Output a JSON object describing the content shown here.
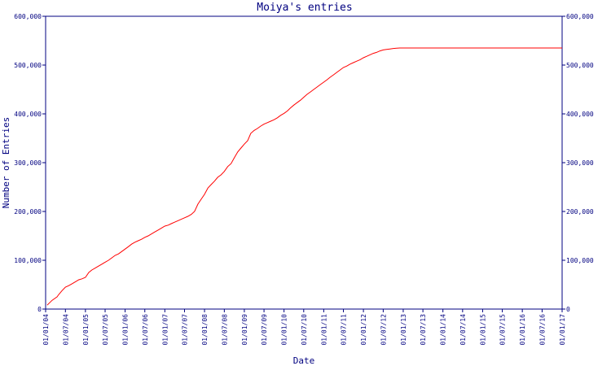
{
  "chart_data": {
    "type": "line",
    "title": "Moiya's entries",
    "xlabel": "Date",
    "ylabel": "Number of Entries",
    "ylim": [
      0,
      600000
    ],
    "y_ticks": [
      "0",
      "100,000",
      "200,000",
      "300,000",
      "400,000",
      "500,000",
      "600,000"
    ],
    "x_ticks": [
      "01/01/04",
      "01/07/04",
      "01/01/05",
      "01/07/05",
      "01/01/06",
      "01/07/06",
      "01/01/07",
      "01/07/07",
      "01/01/08",
      "01/07/08",
      "01/01/09",
      "01/07/09",
      "01/01/10",
      "01/07/10",
      "01/01/11",
      "01/07/11",
      "01/01/12",
      "01/07/12",
      "01/01/13",
      "01/07/13",
      "01/01/14",
      "01/07/14",
      "01/01/15",
      "01/07/15",
      "01/01/16",
      "01/07/16",
      "01/01/17"
    ],
    "grid": false,
    "right_axis_duplicate": true,
    "colors": {
      "axis": "#000080",
      "series": "#ff0000"
    },
    "series": [
      {
        "x": [
          "2004-01-15",
          "2004-03-01",
          "2004-04-15",
          "2004-05-01",
          "2004-06-01",
          "2004-07-01",
          "2004-08-01",
          "2004-09-01",
          "2004-10-01",
          "2004-11-01",
          "2004-12-01",
          "2005-01-01",
          "2005-02-01",
          "2005-03-01",
          "2005-04-01",
          "2005-05-01",
          "2005-06-01",
          "2005-07-01",
          "2005-08-01",
          "2005-09-01",
          "2005-10-01",
          "2005-11-01",
          "2005-12-01",
          "2006-01-01",
          "2006-02-01",
          "2006-03-01",
          "2006-04-01",
          "2006-05-01",
          "2006-06-01",
          "2006-07-01",
          "2006-08-01",
          "2006-09-01",
          "2006-10-01",
          "2006-11-01",
          "2006-12-01",
          "2007-01-01",
          "2007-02-01",
          "2007-03-01",
          "2007-04-01",
          "2007-05-01",
          "2007-06-01",
          "2007-07-01",
          "2007-08-01",
          "2007-09-01",
          "2007-10-01",
          "2007-11-01",
          "2007-12-01",
          "2008-01-01",
          "2008-02-01",
          "2008-03-01",
          "2008-04-01",
          "2008-05-01",
          "2008-06-01",
          "2008-07-01",
          "2008-08-01",
          "2008-09-01",
          "2008-10-01",
          "2008-11-01",
          "2008-12-01",
          "2009-01-01",
          "2009-02-01",
          "2009-03-01",
          "2009-04-01",
          "2009-05-01",
          "2009-06-01",
          "2009-07-01",
          "2009-08-01",
          "2009-09-01",
          "2009-10-01",
          "2009-11-01",
          "2009-12-01",
          "2010-01-01",
          "2010-02-01",
          "2010-03-01",
          "2010-04-01",
          "2010-05-01",
          "2010-06-01",
          "2010-07-01",
          "2010-08-01",
          "2010-09-01",
          "2010-10-01",
          "2010-11-01",
          "2010-12-01",
          "2011-01-01",
          "2011-02-01",
          "2011-03-01",
          "2011-04-01",
          "2011-05-01",
          "2011-06-01",
          "2011-07-01",
          "2011-08-01",
          "2011-09-01",
          "2011-10-01",
          "2011-11-01",
          "2011-12-01",
          "2012-01-01",
          "2012-02-01",
          "2012-03-01",
          "2012-04-01",
          "2012-05-01",
          "2012-06-01",
          "2012-07-01",
          "2012-08-01",
          "2012-09-01",
          "2012-10-01",
          "2012-11-01",
          "2012-12-01",
          "2013-01-01",
          "2013-02-01",
          "2013-03-01",
          "2013-04-01",
          "2013-05-01",
          "2013-06-01",
          "2013-07-01",
          "2013-08-01",
          "2013-09-01",
          "2013-10-01",
          "2013-11-01",
          "2014-01-01",
          "2014-07-01",
          "2015-01-01",
          "2015-07-01",
          "2016-01-01",
          "2016-07-01",
          "2017-01-01"
        ],
        "values": [
          8000,
          18000,
          25000,
          30000,
          38000,
          45000,
          48000,
          52000,
          56000,
          60000,
          62000,
          65000,
          75000,
          80000,
          84000,
          88000,
          92000,
          96000,
          100000,
          105000,
          110000,
          113000,
          118000,
          123000,
          128000,
          133000,
          137000,
          140000,
          143000,
          147000,
          150000,
          154000,
          158000,
          162000,
          166000,
          170000,
          172000,
          175000,
          178000,
          181000,
          184000,
          187000,
          190000,
          194000,
          200000,
          215000,
          225000,
          235000,
          248000,
          255000,
          262000,
          270000,
          275000,
          282000,
          292000,
          298000,
          310000,
          322000,
          330000,
          338000,
          345000,
          360000,
          366000,
          370000,
          375000,
          379000,
          382000,
          385000,
          388000,
          392000,
          397000,
          401000,
          406000,
          412000,
          418000,
          423000,
          428000,
          434000,
          440000,
          445000,
          450000,
          455000,
          460000,
          465000,
          470000,
          475000,
          480000,
          485000,
          490000,
          495000,
          498000,
          502000,
          505000,
          508000,
          511000,
          515000,
          518000,
          521000,
          524000,
          526000,
          529000,
          531000,
          532000,
          533000,
          534000,
          534500,
          535000,
          535000,
          535000,
          535000,
          535000,
          535000,
          535000,
          535000,
          535000,
          535000,
          535000,
          535000,
          535000,
          535000,
          535000,
          535000,
          535000,
          535000,
          535000
        ]
      }
    ]
  }
}
